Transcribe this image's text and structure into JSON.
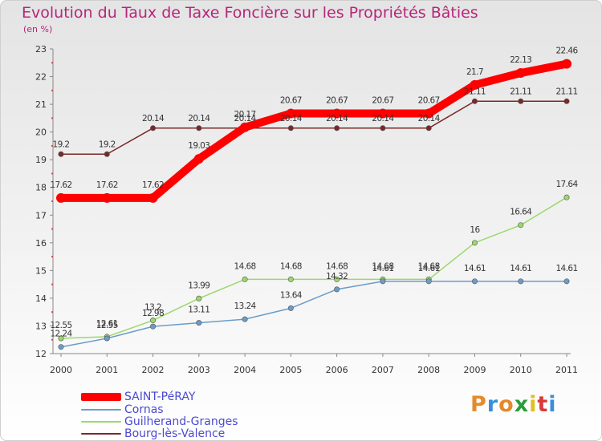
{
  "header": {
    "title": "Evolution du Taux de Taxe Foncière sur les Propriétés Bâties",
    "subtitle": "(en %)"
  },
  "logo": {
    "text": "Proxiti",
    "colors": [
      "#e58a2a",
      "#3a8fd8",
      "#e58a2a",
      "#2a9d3a",
      "#e0c020",
      "#d83a3a",
      "#3a8fd8"
    ]
  },
  "chart_data": {
    "type": "line",
    "title": "Evolution du Taux de Taxe Foncière sur les Propriétés Bâties",
    "subtitle": "(en %)",
    "x": [
      "2000",
      "2001",
      "2002",
      "2003",
      "2004",
      "2005",
      "2006",
      "2007",
      "2008",
      "2009",
      "2010",
      "2011"
    ],
    "ylim": [
      12,
      23
    ],
    "yticks": [
      12,
      13,
      14,
      15,
      16,
      17,
      18,
      19,
      20,
      21,
      22,
      23
    ],
    "grid": false,
    "legend": "bottom-left",
    "series": [
      {
        "name": "SAINT-PéRAY",
        "color": "#ff0000",
        "values": [
          17.62,
          17.62,
          17.62,
          19.03,
          20.17,
          20.67,
          20.67,
          20.67,
          20.67,
          21.7,
          22.13,
          22.46
        ],
        "labels": [
          "17.62",
          "17.62",
          "17.62",
          "19.03",
          "20.17",
          "20.67",
          "20.67",
          "20.67",
          "20.67",
          "21.7",
          "22.13",
          "22.46"
        ]
      },
      {
        "name": "Cornas",
        "color": "#6b9cc9",
        "values": [
          12.24,
          12.55,
          12.98,
          13.11,
          13.24,
          13.64,
          14.32,
          14.61,
          14.61,
          14.61,
          14.61,
          14.61
        ],
        "labels": [
          "12.24",
          "12.55",
          "12.98",
          "13.11",
          "13.24",
          "13.64",
          "14.32",
          "14.61",
          "14.61",
          "14.61",
          "14.61",
          "14.61"
        ]
      },
      {
        "name": "Guilherand-Granges",
        "color": "#9ad86a",
        "values": [
          12.55,
          12.61,
          13.2,
          13.99,
          14.68,
          14.68,
          14.68,
          14.68,
          14.68,
          16,
          16.64,
          17.64
        ],
        "labels": [
          "12.55",
          "12.61",
          "13.2",
          "13.99",
          "14.68",
          "14.68",
          "14.68",
          "14.68",
          "14.68",
          "16",
          "16.64",
          "17.64"
        ]
      },
      {
        "name": "Bourg-lès-Valence",
        "color": "#7a2828",
        "values": [
          19.2,
          19.2,
          20.14,
          20.14,
          20.14,
          20.14,
          20.14,
          20.14,
          20.14,
          21.11,
          21.11,
          21.11
        ],
        "labels": [
          "19.2",
          "19.2",
          "20.14",
          "20.14",
          "20.14",
          "20.14",
          "20.14",
          "20.14",
          "20.14",
          "21.11",
          "21.11",
          "21.11"
        ]
      }
    ]
  }
}
